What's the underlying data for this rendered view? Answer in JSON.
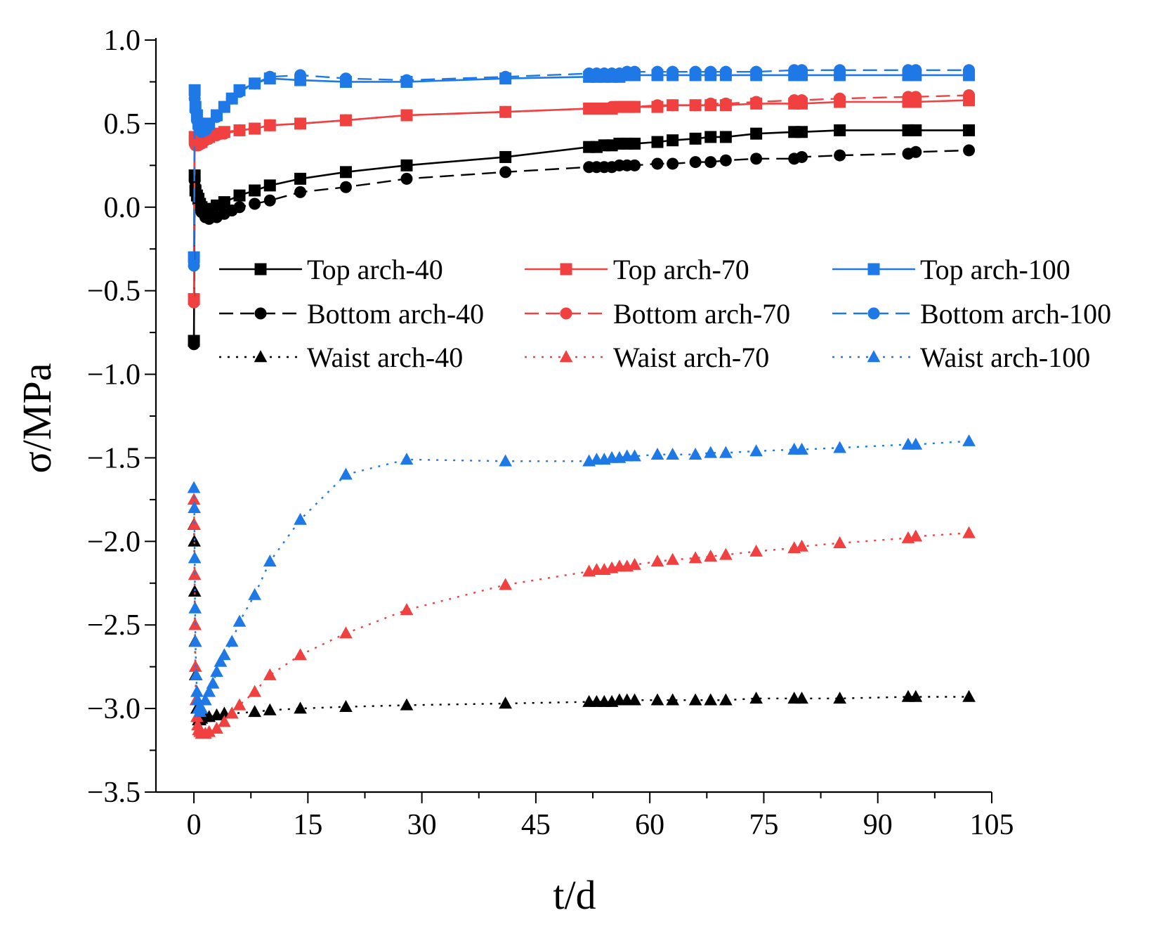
{
  "chart_data": {
    "type": "line",
    "title": "",
    "xlabel": "t/d",
    "ylabel": "σ/MPa",
    "xlim": [
      -5,
      105
    ],
    "ylim": [
      -3.5,
      1.0
    ],
    "xticks": [
      0,
      15,
      30,
      45,
      60,
      75,
      90,
      105
    ],
    "xtick_labels": [
      "0",
      "15",
      "30",
      "45",
      "60",
      "75",
      "90",
      "105"
    ],
    "yticks": [
      -3.5,
      -3.0,
      -2.5,
      -2.0,
      -1.5,
      -1.0,
      -0.5,
      0.0,
      0.5,
      1.0
    ],
    "ytick_labels": [
      "−3.5",
      "−3.0",
      "−2.5",
      "−2.0",
      "−1.5",
      "−1.0",
      "−0.5",
      "0.0",
      "0.5",
      "1.0"
    ],
    "grid": false,
    "legend_position": "middle, three columns",
    "colors": {
      "black": "#000000",
      "red": "#f04040",
      "blue": "#1e78e6"
    },
    "series": [
      {
        "name": "Top arch-40",
        "color": "black",
        "line": "solid",
        "marker": "square",
        "x": [
          0,
          0.1,
          0.2,
          0.4,
          0.6,
          0.8,
          1,
          1.5,
          2,
          3,
          4,
          6,
          8,
          10,
          14,
          20,
          28,
          41,
          52,
          53,
          54,
          55,
          56,
          57,
          58,
          61,
          63,
          66,
          68,
          70,
          74,
          79,
          80,
          85,
          94,
          95,
          102
        ],
        "y": [
          -0.8,
          0.19,
          0.1,
          0.07,
          0.05,
          0.02,
          0.0,
          -0.01,
          -0.02,
          0.01,
          0.03,
          0.07,
          0.1,
          0.13,
          0.17,
          0.21,
          0.25,
          0.3,
          0.36,
          0.36,
          0.37,
          0.37,
          0.38,
          0.38,
          0.38,
          0.39,
          0.4,
          0.41,
          0.42,
          0.42,
          0.44,
          0.45,
          0.45,
          0.46,
          0.46,
          0.46,
          0.46
        ]
      },
      {
        "name": "Top arch-70",
        "color": "red",
        "line": "solid",
        "marker": "square",
        "x": [
          0,
          0.1,
          0.2,
          0.4,
          0.6,
          0.8,
          1,
          1.5,
          2,
          3,
          4,
          6,
          8,
          10,
          14,
          20,
          28,
          41,
          52,
          53,
          54,
          55,
          56,
          57,
          58,
          61,
          63,
          66,
          68,
          70,
          74,
          79,
          80,
          85,
          94,
          95,
          102
        ],
        "y": [
          -0.55,
          0.42,
          0.4,
          0.39,
          0.39,
          0.39,
          0.39,
          0.41,
          0.42,
          0.44,
          0.45,
          0.46,
          0.47,
          0.49,
          0.5,
          0.52,
          0.55,
          0.57,
          0.59,
          0.59,
          0.59,
          0.59,
          0.6,
          0.6,
          0.6,
          0.6,
          0.61,
          0.61,
          0.61,
          0.61,
          0.62,
          0.62,
          0.62,
          0.63,
          0.63,
          0.63,
          0.64
        ]
      },
      {
        "name": "Top arch-100",
        "color": "blue",
        "line": "solid",
        "marker": "square",
        "x": [
          0,
          0.1,
          0.2,
          0.4,
          0.6,
          0.8,
          1,
          1.5,
          2,
          3,
          4,
          5,
          6,
          8,
          10,
          14,
          20,
          28,
          41,
          52,
          53,
          54,
          55,
          56,
          57,
          58,
          61,
          63,
          66,
          68,
          70,
          74,
          79,
          80,
          85,
          94,
          95,
          102
        ],
        "y": [
          -0.3,
          0.7,
          0.6,
          0.55,
          0.5,
          0.48,
          0.47,
          0.48,
          0.5,
          0.55,
          0.6,
          0.65,
          0.7,
          0.74,
          0.77,
          0.76,
          0.75,
          0.75,
          0.77,
          0.78,
          0.78,
          0.78,
          0.78,
          0.78,
          0.79,
          0.79,
          0.79,
          0.79,
          0.79,
          0.79,
          0.79,
          0.79,
          0.79,
          0.79,
          0.79,
          0.79,
          0.79,
          0.79
        ]
      },
      {
        "name": "Bottom arch-40",
        "color": "black",
        "line": "dashed",
        "marker": "circle",
        "x": [
          0,
          0.1,
          0.2,
          0.4,
          0.6,
          0.8,
          1,
          1.5,
          2,
          3,
          4,
          5,
          6,
          8,
          10,
          14,
          20,
          28,
          41,
          52,
          53,
          54,
          55,
          56,
          57,
          58,
          61,
          63,
          66,
          68,
          70,
          74,
          79,
          80,
          85,
          94,
          95,
          102
        ],
        "y": [
          -0.82,
          0.16,
          0.12,
          0.08,
          0.04,
          0.0,
          -0.03,
          -0.06,
          -0.07,
          -0.06,
          -0.04,
          -0.02,
          0.0,
          0.02,
          0.04,
          0.09,
          0.12,
          0.17,
          0.21,
          0.24,
          0.24,
          0.24,
          0.24,
          0.25,
          0.25,
          0.25,
          0.26,
          0.26,
          0.27,
          0.27,
          0.28,
          0.29,
          0.29,
          0.3,
          0.31,
          0.32,
          0.33,
          0.34
        ]
      },
      {
        "name": "Bottom arch-70",
        "color": "red",
        "line": "dashed",
        "marker": "circle",
        "x": [
          0,
          0.1,
          0.2,
          0.4,
          0.6,
          0.8,
          1,
          1.5,
          2,
          3,
          4,
          6,
          8,
          10,
          14,
          20,
          28,
          41,
          52,
          53,
          54,
          55,
          56,
          57,
          58,
          61,
          63,
          66,
          68,
          70,
          74,
          79,
          80,
          85,
          94,
          95,
          102
        ],
        "y": [
          -0.57,
          0.38,
          0.37,
          0.37,
          0.37,
          0.38,
          0.38,
          0.4,
          0.41,
          0.43,
          0.44,
          0.46,
          0.47,
          0.49,
          0.5,
          0.52,
          0.55,
          0.57,
          0.59,
          0.59,
          0.59,
          0.6,
          0.6,
          0.6,
          0.6,
          0.61,
          0.61,
          0.61,
          0.62,
          0.62,
          0.63,
          0.64,
          0.64,
          0.65,
          0.66,
          0.66,
          0.67
        ]
      },
      {
        "name": "Bottom arch-100",
        "color": "blue",
        "line": "dashed",
        "marker": "circle",
        "x": [
          0,
          0.1,
          0.2,
          0.4,
          0.6,
          0.8,
          1,
          1.5,
          2,
          3,
          4,
          5,
          6,
          8,
          10,
          14,
          20,
          28,
          41,
          52,
          53,
          54,
          55,
          56,
          57,
          58,
          61,
          63,
          66,
          68,
          70,
          74,
          79,
          80,
          85,
          94,
          95,
          102
        ],
        "y": [
          -0.35,
          0.65,
          0.58,
          0.52,
          0.48,
          0.46,
          0.45,
          0.46,
          0.49,
          0.54,
          0.6,
          0.65,
          0.69,
          0.74,
          0.78,
          0.79,
          0.77,
          0.76,
          0.78,
          0.8,
          0.8,
          0.8,
          0.8,
          0.8,
          0.81,
          0.81,
          0.81,
          0.81,
          0.81,
          0.81,
          0.81,
          0.81,
          0.82,
          0.82,
          0.82,
          0.82,
          0.82,
          0.82
        ]
      },
      {
        "name": "Waist arch-40",
        "color": "black",
        "line": "dotted",
        "marker": "triangle",
        "x": [
          0,
          0.05,
          0.1,
          0.15,
          0.2,
          0.3,
          0.4,
          0.5,
          0.6,
          0.8,
          1,
          1.5,
          2,
          3,
          4,
          5,
          8,
          10,
          14,
          20,
          28,
          41,
          52,
          53,
          54,
          55,
          56,
          57,
          58,
          61,
          63,
          66,
          68,
          70,
          74,
          79,
          80,
          85,
          94,
          95,
          102
        ],
        "y": [
          -1.9,
          -2.0,
          -2.3,
          -2.6,
          -2.8,
          -2.95,
          -3.0,
          -3.05,
          -3.07,
          -3.07,
          -3.06,
          -3.05,
          -3.05,
          -3.04,
          -3.03,
          -3.03,
          -3.02,
          -3.01,
          -3.0,
          -2.99,
          -2.98,
          -2.97,
          -2.96,
          -2.96,
          -2.96,
          -2.96,
          -2.95,
          -2.95,
          -2.95,
          -2.95,
          -2.95,
          -2.95,
          -2.95,
          -2.95,
          -2.94,
          -2.94,
          -2.94,
          -2.94,
          -2.93,
          -2.93,
          -2.93
        ]
      },
      {
        "name": "Waist arch-70",
        "color": "red",
        "line": "dotted",
        "marker": "triangle",
        "x": [
          0,
          0.05,
          0.1,
          0.15,
          0.2,
          0.3,
          0.4,
          0.5,
          0.6,
          0.8,
          1,
          1.5,
          2,
          3,
          4,
          5,
          6,
          8,
          10,
          14,
          20,
          28,
          41,
          52,
          53,
          54,
          55,
          56,
          57,
          58,
          61,
          63,
          66,
          68,
          70,
          74,
          79,
          80,
          85,
          94,
          95,
          102
        ],
        "y": [
          -1.75,
          -1.9,
          -2.2,
          -2.5,
          -2.75,
          -2.95,
          -3.05,
          -3.1,
          -3.13,
          -3.14,
          -3.15,
          -3.15,
          -3.14,
          -3.12,
          -3.08,
          -3.03,
          -2.98,
          -2.9,
          -2.8,
          -2.68,
          -2.55,
          -2.41,
          -2.26,
          -2.18,
          -2.17,
          -2.17,
          -2.16,
          -2.15,
          -2.15,
          -2.14,
          -2.12,
          -2.11,
          -2.1,
          -2.09,
          -2.08,
          -2.06,
          -2.04,
          -2.03,
          -2.01,
          -1.98,
          -1.97,
          -1.95
        ]
      },
      {
        "name": "Waist arch-100",
        "color": "blue",
        "line": "dotted",
        "marker": "triangle",
        "x": [
          0,
          0.05,
          0.1,
          0.15,
          0.2,
          0.3,
          0.4,
          0.5,
          0.6,
          0.8,
          1,
          1.5,
          2,
          2.5,
          3,
          3.5,
          4,
          5,
          6,
          8,
          10,
          14,
          20,
          28,
          41,
          52,
          53,
          54,
          55,
          56,
          57,
          58,
          61,
          63,
          66,
          68,
          70,
          74,
          79,
          80,
          85,
          94,
          95,
          102
        ],
        "y": [
          -1.68,
          -1.8,
          -2.1,
          -2.4,
          -2.6,
          -2.8,
          -2.9,
          -2.95,
          -3.0,
          -3.02,
          -3.0,
          -2.95,
          -2.9,
          -2.85,
          -2.78,
          -2.72,
          -2.68,
          -2.6,
          -2.48,
          -2.32,
          -2.12,
          -1.87,
          -1.6,
          -1.51,
          -1.52,
          -1.52,
          -1.51,
          -1.51,
          -1.5,
          -1.5,
          -1.49,
          -1.49,
          -1.48,
          -1.48,
          -1.48,
          -1.47,
          -1.47,
          -1.46,
          -1.45,
          -1.45,
          -1.44,
          -1.42,
          -1.42,
          -1.4
        ]
      }
    ]
  }
}
